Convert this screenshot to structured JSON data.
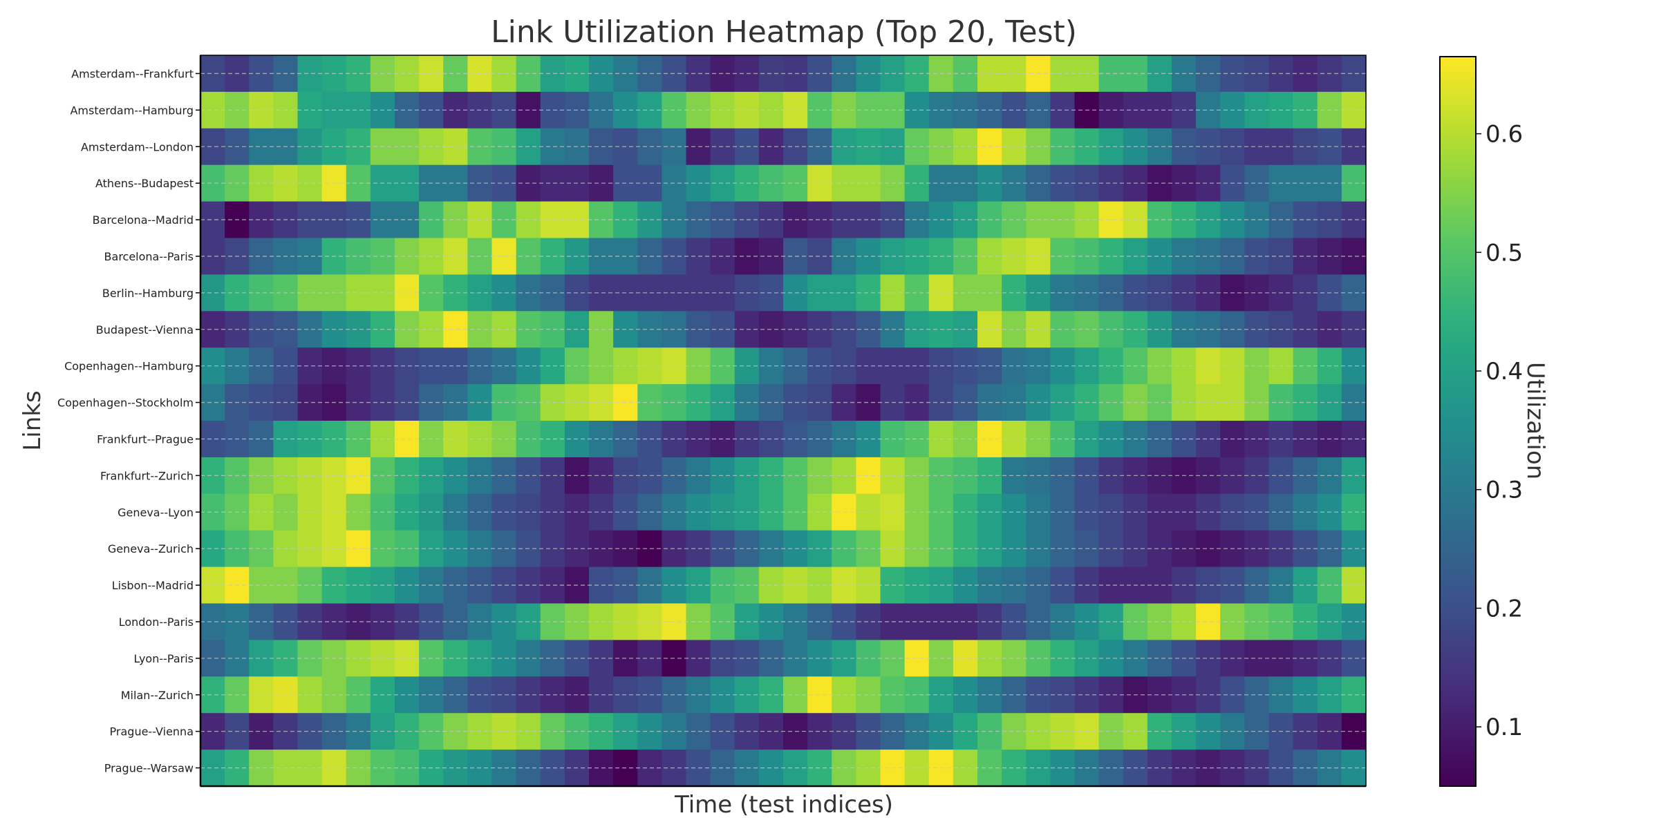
{
  "chart_data": {
    "type": "heatmap",
    "title": "Link Utilization Heatmap (Top 20, Test)",
    "xlabel": "Time (test indices)",
    "ylabel": "Links",
    "colorbar_label": "Utilization",
    "colormap": "viridis",
    "vmin": 0.05,
    "vmax": 0.665,
    "colorbar_ticks": [
      0.1,
      0.2,
      0.3,
      0.4,
      0.5,
      0.6
    ],
    "colorbar_tick_labels": [
      "0.1",
      "0.2",
      "0.3",
      "0.4",
      "0.5",
      "0.6"
    ],
    "grid": "dashed horizontal lines through row centers",
    "rows": [
      "Amsterdam--Frankfurt",
      "Amsterdam--Hamburg",
      "Amsterdam--London",
      "Athens--Budapest",
      "Barcelona--Madrid",
      "Barcelona--Paris",
      "Berlin--Hamburg",
      "Budapest--Vienna",
      "Copenhagen--Hamburg",
      "Copenhagen--Stockholm",
      "Frankfurt--Prague",
      "Frankfurt--Zurich",
      "Geneva--Lyon",
      "Geneva--Zurich",
      "Lisbon--Madrid",
      "London--Paris",
      "Lyon--Paris",
      "Milan--Zurich",
      "Prague--Vienna",
      "Prague--Warsaw"
    ],
    "values": [
      [
        0.18,
        0.15,
        0.2,
        0.25,
        0.4,
        0.42,
        0.45,
        0.55,
        0.58,
        0.62,
        0.52,
        0.63,
        0.58,
        0.5,
        0.4,
        0.42,
        0.35,
        0.3,
        0.25,
        0.2,
        0.14,
        0.1,
        0.12,
        0.16,
        0.15,
        0.2,
        0.28,
        0.35,
        0.4,
        0.45,
        0.55,
        0.5,
        0.6,
        0.6,
        0.66,
        0.58,
        0.58,
        0.48,
        0.48,
        0.4,
        0.3,
        0.25,
        0.2,
        0.18,
        0.15,
        0.12,
        0.15,
        0.18
      ],
      [
        0.58,
        0.55,
        0.6,
        0.58,
        0.42,
        0.4,
        0.4,
        0.35,
        0.25,
        0.2,
        0.12,
        0.15,
        0.18,
        0.08,
        0.2,
        0.22,
        0.28,
        0.35,
        0.4,
        0.5,
        0.55,
        0.58,
        0.6,
        0.58,
        0.62,
        0.5,
        0.55,
        0.52,
        0.52,
        0.35,
        0.3,
        0.28,
        0.25,
        0.2,
        0.25,
        0.15,
        0.05,
        0.1,
        0.12,
        0.12,
        0.15,
        0.3,
        0.35,
        0.4,
        0.42,
        0.45,
        0.55,
        0.6
      ],
      [
        0.18,
        0.22,
        0.3,
        0.3,
        0.38,
        0.42,
        0.45,
        0.55,
        0.55,
        0.58,
        0.6,
        0.5,
        0.48,
        0.4,
        0.3,
        0.28,
        0.22,
        0.2,
        0.25,
        0.28,
        0.1,
        0.15,
        0.2,
        0.12,
        0.18,
        0.25,
        0.4,
        0.42,
        0.4,
        0.52,
        0.55,
        0.58,
        0.66,
        0.6,
        0.55,
        0.48,
        0.45,
        0.4,
        0.35,
        0.3,
        0.22,
        0.2,
        0.18,
        0.15,
        0.15,
        0.18,
        0.2,
        0.15
      ],
      [
        0.48,
        0.52,
        0.58,
        0.6,
        0.58,
        0.65,
        0.5,
        0.4,
        0.4,
        0.3,
        0.3,
        0.22,
        0.2,
        0.1,
        0.12,
        0.12,
        0.1,
        0.2,
        0.2,
        0.3,
        0.35,
        0.4,
        0.45,
        0.48,
        0.5,
        0.62,
        0.58,
        0.58,
        0.55,
        0.45,
        0.3,
        0.3,
        0.35,
        0.3,
        0.25,
        0.2,
        0.18,
        0.15,
        0.12,
        0.08,
        0.1,
        0.12,
        0.2,
        0.25,
        0.3,
        0.3,
        0.3,
        0.48
      ],
      [
        0.15,
        0.05,
        0.12,
        0.15,
        0.18,
        0.18,
        0.2,
        0.3,
        0.3,
        0.48,
        0.55,
        0.6,
        0.5,
        0.58,
        0.62,
        0.62,
        0.5,
        0.45,
        0.38,
        0.3,
        0.25,
        0.22,
        0.18,
        0.15,
        0.1,
        0.12,
        0.15,
        0.15,
        0.18,
        0.3,
        0.35,
        0.4,
        0.48,
        0.52,
        0.55,
        0.55,
        0.58,
        0.65,
        0.62,
        0.48,
        0.45,
        0.4,
        0.35,
        0.3,
        0.25,
        0.2,
        0.18,
        0.15
      ],
      [
        0.15,
        0.18,
        0.25,
        0.28,
        0.3,
        0.45,
        0.48,
        0.5,
        0.55,
        0.58,
        0.62,
        0.52,
        0.65,
        0.5,
        0.45,
        0.38,
        0.3,
        0.3,
        0.25,
        0.2,
        0.15,
        0.12,
        0.08,
        0.1,
        0.22,
        0.18,
        0.3,
        0.35,
        0.4,
        0.42,
        0.45,
        0.5,
        0.58,
        0.6,
        0.62,
        0.5,
        0.48,
        0.45,
        0.4,
        0.35,
        0.3,
        0.28,
        0.25,
        0.2,
        0.18,
        0.12,
        0.1,
        0.08
      ],
      [
        0.38,
        0.45,
        0.48,
        0.5,
        0.55,
        0.55,
        0.58,
        0.58,
        0.65,
        0.5,
        0.45,
        0.4,
        0.35,
        0.28,
        0.25,
        0.18,
        0.15,
        0.15,
        0.15,
        0.15,
        0.15,
        0.15,
        0.18,
        0.2,
        0.35,
        0.4,
        0.4,
        0.45,
        0.58,
        0.5,
        0.62,
        0.55,
        0.55,
        0.45,
        0.38,
        0.3,
        0.28,
        0.25,
        0.2,
        0.18,
        0.15,
        0.12,
        0.08,
        0.1,
        0.12,
        0.15,
        0.2,
        0.25
      ],
      [
        0.12,
        0.15,
        0.2,
        0.22,
        0.28,
        0.35,
        0.38,
        0.45,
        0.55,
        0.58,
        0.66,
        0.55,
        0.58,
        0.5,
        0.48,
        0.4,
        0.55,
        0.35,
        0.3,
        0.28,
        0.22,
        0.2,
        0.12,
        0.1,
        0.12,
        0.15,
        0.18,
        0.22,
        0.3,
        0.4,
        0.42,
        0.4,
        0.62,
        0.55,
        0.6,
        0.5,
        0.52,
        0.48,
        0.45,
        0.38,
        0.3,
        0.28,
        0.25,
        0.2,
        0.18,
        0.15,
        0.12,
        0.15
      ],
      [
        0.35,
        0.3,
        0.25,
        0.2,
        0.12,
        0.1,
        0.12,
        0.15,
        0.18,
        0.2,
        0.2,
        0.25,
        0.28,
        0.35,
        0.42,
        0.52,
        0.55,
        0.58,
        0.6,
        0.62,
        0.55,
        0.5,
        0.38,
        0.3,
        0.25,
        0.2,
        0.18,
        0.15,
        0.15,
        0.15,
        0.18,
        0.2,
        0.22,
        0.28,
        0.3,
        0.35,
        0.4,
        0.45,
        0.5,
        0.55,
        0.58,
        0.62,
        0.6,
        0.55,
        0.58,
        0.5,
        0.45,
        0.35
      ],
      [
        0.3,
        0.22,
        0.2,
        0.18,
        0.1,
        0.08,
        0.12,
        0.15,
        0.18,
        0.25,
        0.28,
        0.35,
        0.48,
        0.5,
        0.58,
        0.6,
        0.62,
        0.66,
        0.5,
        0.48,
        0.45,
        0.4,
        0.3,
        0.25,
        0.2,
        0.18,
        0.12,
        0.08,
        0.15,
        0.12,
        0.18,
        0.22,
        0.28,
        0.3,
        0.35,
        0.4,
        0.45,
        0.5,
        0.55,
        0.52,
        0.58,
        0.6,
        0.6,
        0.55,
        0.48,
        0.45,
        0.4,
        0.3
      ],
      [
        0.2,
        0.22,
        0.25,
        0.4,
        0.42,
        0.45,
        0.5,
        0.58,
        0.66,
        0.55,
        0.6,
        0.58,
        0.55,
        0.48,
        0.45,
        0.35,
        0.3,
        0.25,
        0.2,
        0.15,
        0.12,
        0.1,
        0.15,
        0.18,
        0.22,
        0.25,
        0.3,
        0.35,
        0.48,
        0.5,
        0.58,
        0.55,
        0.66,
        0.6,
        0.55,
        0.48,
        0.4,
        0.35,
        0.3,
        0.25,
        0.2,
        0.15,
        0.1,
        0.12,
        0.15,
        0.12,
        0.1,
        0.12
      ],
      [
        0.45,
        0.5,
        0.55,
        0.58,
        0.6,
        0.62,
        0.65,
        0.5,
        0.45,
        0.4,
        0.35,
        0.3,
        0.25,
        0.2,
        0.15,
        0.08,
        0.12,
        0.18,
        0.2,
        0.25,
        0.3,
        0.35,
        0.4,
        0.45,
        0.5,
        0.55,
        0.58,
        0.66,
        0.6,
        0.55,
        0.5,
        0.48,
        0.45,
        0.3,
        0.28,
        0.25,
        0.2,
        0.15,
        0.12,
        0.1,
        0.08,
        0.1,
        0.12,
        0.15,
        0.2,
        0.25,
        0.3,
        0.4
      ],
      [
        0.48,
        0.52,
        0.58,
        0.55,
        0.6,
        0.62,
        0.55,
        0.48,
        0.42,
        0.38,
        0.3,
        0.25,
        0.2,
        0.18,
        0.15,
        0.12,
        0.15,
        0.2,
        0.25,
        0.3,
        0.35,
        0.38,
        0.4,
        0.45,
        0.5,
        0.58,
        0.66,
        0.6,
        0.62,
        0.55,
        0.5,
        0.45,
        0.4,
        0.35,
        0.3,
        0.25,
        0.2,
        0.18,
        0.15,
        0.12,
        0.12,
        0.15,
        0.18,
        0.2,
        0.25,
        0.3,
        0.35,
        0.45
      ],
      [
        0.42,
        0.48,
        0.52,
        0.58,
        0.6,
        0.62,
        0.66,
        0.5,
        0.48,
        0.4,
        0.35,
        0.3,
        0.25,
        0.2,
        0.15,
        0.12,
        0.1,
        0.08,
        0.05,
        0.12,
        0.15,
        0.2,
        0.25,
        0.3,
        0.35,
        0.4,
        0.48,
        0.52,
        0.6,
        0.55,
        0.5,
        0.45,
        0.4,
        0.35,
        0.3,
        0.25,
        0.22,
        0.18,
        0.15,
        0.12,
        0.1,
        0.08,
        0.1,
        0.12,
        0.15,
        0.2,
        0.25,
        0.35
      ],
      [
        0.62,
        0.66,
        0.55,
        0.55,
        0.52,
        0.45,
        0.42,
        0.4,
        0.35,
        0.3,
        0.25,
        0.22,
        0.18,
        0.15,
        0.12,
        0.08,
        0.2,
        0.22,
        0.28,
        0.35,
        0.4,
        0.48,
        0.5,
        0.58,
        0.6,
        0.58,
        0.62,
        0.6,
        0.45,
        0.42,
        0.4,
        0.35,
        0.3,
        0.28,
        0.25,
        0.2,
        0.15,
        0.12,
        0.12,
        0.12,
        0.15,
        0.18,
        0.2,
        0.25,
        0.3,
        0.4,
        0.48,
        0.6
      ],
      [
        0.28,
        0.3,
        0.25,
        0.2,
        0.15,
        0.12,
        0.1,
        0.12,
        0.15,
        0.2,
        0.25,
        0.3,
        0.35,
        0.4,
        0.52,
        0.55,
        0.58,
        0.6,
        0.62,
        0.65,
        0.55,
        0.5,
        0.4,
        0.35,
        0.3,
        0.25,
        0.2,
        0.15,
        0.12,
        0.12,
        0.12,
        0.12,
        0.15,
        0.2,
        0.25,
        0.3,
        0.35,
        0.4,
        0.52,
        0.55,
        0.58,
        0.66,
        0.55,
        0.52,
        0.5,
        0.45,
        0.4,
        0.35
      ],
      [
        0.25,
        0.3,
        0.4,
        0.45,
        0.52,
        0.55,
        0.58,
        0.6,
        0.62,
        0.5,
        0.45,
        0.4,
        0.35,
        0.3,
        0.25,
        0.2,
        0.15,
        0.08,
        0.12,
        0.05,
        0.12,
        0.18,
        0.2,
        0.25,
        0.3,
        0.35,
        0.4,
        0.48,
        0.52,
        0.66,
        0.55,
        0.64,
        0.58,
        0.55,
        0.5,
        0.45,
        0.4,
        0.35,
        0.3,
        0.25,
        0.2,
        0.15,
        0.12,
        0.1,
        0.1,
        0.12,
        0.15,
        0.2
      ],
      [
        0.45,
        0.52,
        0.62,
        0.64,
        0.58,
        0.55,
        0.5,
        0.42,
        0.35,
        0.3,
        0.25,
        0.2,
        0.18,
        0.15,
        0.12,
        0.1,
        0.15,
        0.18,
        0.2,
        0.25,
        0.3,
        0.35,
        0.4,
        0.45,
        0.55,
        0.66,
        0.58,
        0.55,
        0.5,
        0.48,
        0.4,
        0.35,
        0.3,
        0.25,
        0.2,
        0.18,
        0.15,
        0.12,
        0.08,
        0.1,
        0.12,
        0.15,
        0.2,
        0.25,
        0.3,
        0.35,
        0.4,
        0.45
      ],
      [
        0.12,
        0.18,
        0.1,
        0.15,
        0.2,
        0.25,
        0.3,
        0.4,
        0.45,
        0.5,
        0.55,
        0.58,
        0.6,
        0.58,
        0.52,
        0.48,
        0.45,
        0.4,
        0.35,
        0.3,
        0.25,
        0.2,
        0.15,
        0.12,
        0.08,
        0.12,
        0.15,
        0.2,
        0.25,
        0.3,
        0.35,
        0.42,
        0.48,
        0.55,
        0.58,
        0.6,
        0.62,
        0.55,
        0.58,
        0.45,
        0.4,
        0.35,
        0.3,
        0.25,
        0.2,
        0.15,
        0.12,
        0.05
      ],
      [
        0.4,
        0.45,
        0.55,
        0.58,
        0.58,
        0.62,
        0.55,
        0.5,
        0.48,
        0.42,
        0.38,
        0.35,
        0.3,
        0.25,
        0.2,
        0.15,
        0.08,
        0.05,
        0.12,
        0.15,
        0.2,
        0.25,
        0.3,
        0.35,
        0.4,
        0.45,
        0.55,
        0.58,
        0.66,
        0.6,
        0.66,
        0.58,
        0.5,
        0.45,
        0.4,
        0.35,
        0.3,
        0.25,
        0.2,
        0.15,
        0.12,
        0.1,
        0.12,
        0.15,
        0.2,
        0.25,
        0.3,
        0.35
      ]
    ]
  }
}
